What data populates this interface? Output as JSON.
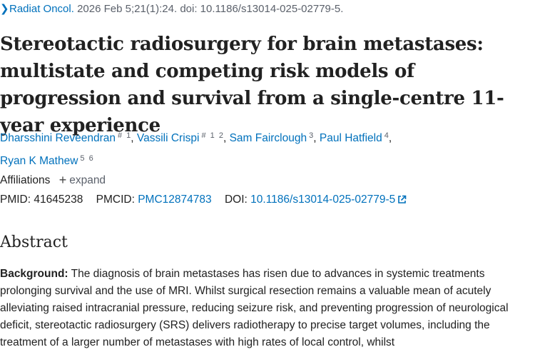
{
  "citation": {
    "journal": "Radiat Oncol.",
    "details": "2026 Feb 5;21(1):24. doi: 10.1186/s13014-025-02779-5."
  },
  "title": "Stereotactic radiosurgery for brain metastases: multistate and competing risk models of progression and survival from a single-centre 11-year experience",
  "authors": [
    {
      "name": "Dharsshini Reveendran",
      "sup": "# 1"
    },
    {
      "name": "Vassili Crispi",
      "sup": "# 1 2"
    },
    {
      "name": "Sam Fairclough",
      "sup": "3"
    },
    {
      "name": "Paul Hatfield",
      "sup": "4"
    },
    {
      "name": "Ryan K Mathew",
      "sup": "5 6"
    }
  ],
  "affiliations": {
    "label": "Affiliations",
    "expand_label": "expand"
  },
  "identifiers": {
    "pmid_label": "PMID:",
    "pmid": "41645238",
    "pmcid_label": "PMCID:",
    "pmcid": "PMC12874783",
    "doi_label": "DOI:",
    "doi": "10.1186/s13014-025-02779-5"
  },
  "abstract": {
    "heading": "Abstract",
    "background_label": "Background:",
    "background_text": "The diagnosis of brain metastases has risen due to advances in systemic treatments prolonging survival and the use of MRI. Whilst surgical resection remains a valuable mean of acutely alleviating raised intracranial pressure, reducing seizure risk, and preventing progression of neurological deficit, stereotactic radiosurgery (SRS) delivers radiotherapy to precise target volumes, including the treatment of a larger number of metastases with high rates of local control, whilst"
  },
  "icons": {
    "journal_chevron": "chevron-right-icon",
    "expand": "plus-icon",
    "doi_link": "external-link-icon"
  },
  "colors": {
    "link": "#0071bc",
    "text": "#212121",
    "muted": "#5b616b"
  }
}
